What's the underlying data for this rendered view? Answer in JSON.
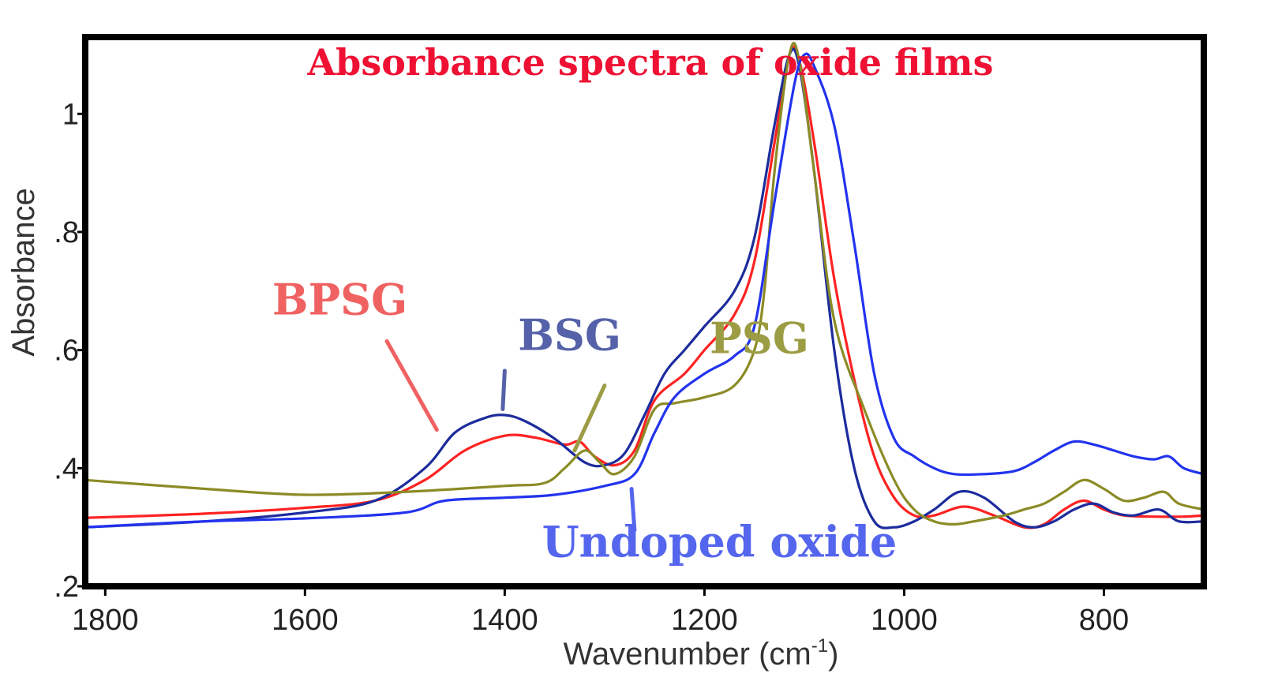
{
  "chart_data": {
    "type": "line",
    "title": "Absorbance spectra of oxide films",
    "xlabel_main": "Wavenumber (cm",
    "xlabel_sup": "-1",
    "xlabel_close": ")",
    "ylabel": "Absorbance",
    "xlim": [
      1820,
      700
    ],
    "ylim": [
      0.2,
      1.13
    ],
    "x_ticks": [
      1800,
      1600,
      1400,
      1200,
      1000,
      800
    ],
    "x_tick_labels": [
      "1800",
      "1600",
      "1400",
      "1200",
      "1000",
      "800"
    ],
    "y_ticks": [
      0.2,
      0.4,
      0.6,
      0.8,
      1.0
    ],
    "y_tick_labels": [
      ".2",
      ".4",
      ".6",
      ".8",
      "1"
    ],
    "title_color": "#ee1133",
    "grid": false,
    "series": [
      {
        "name": "BPSG",
        "color": "#ff2222",
        "label_color": "#f06262",
        "label_at": [
          1565,
          0.66
        ],
        "pointer": [
          [
            1518,
            0.615
          ],
          [
            1468,
            0.465
          ]
        ],
        "points": [
          [
            1820,
            0.316
          ],
          [
            1700,
            0.323
          ],
          [
            1600,
            0.333
          ],
          [
            1530,
            0.345
          ],
          [
            1480,
            0.38
          ],
          [
            1440,
            0.43
          ],
          [
            1400,
            0.455
          ],
          [
            1370,
            0.452
          ],
          [
            1340,
            0.44
          ],
          [
            1325,
            0.445
          ],
          [
            1310,
            0.42
          ],
          [
            1290,
            0.405
          ],
          [
            1270,
            0.43
          ],
          [
            1250,
            0.515
          ],
          [
            1220,
            0.56
          ],
          [
            1200,
            0.6
          ],
          [
            1170,
            0.66
          ],
          [
            1150,
            0.75
          ],
          [
            1130,
            0.95
          ],
          [
            1115,
            1.1
          ],
          [
            1105,
            1.09
          ],
          [
            1090,
            0.95
          ],
          [
            1070,
            0.72
          ],
          [
            1050,
            0.55
          ],
          [
            1030,
            0.42
          ],
          [
            1010,
            0.35
          ],
          [
            990,
            0.32
          ],
          [
            970,
            0.32
          ],
          [
            940,
            0.335
          ],
          [
            910,
            0.32
          ],
          [
            880,
            0.3
          ],
          [
            860,
            0.305
          ],
          [
            840,
            0.33
          ],
          [
            820,
            0.345
          ],
          [
            800,
            0.33
          ],
          [
            780,
            0.32
          ],
          [
            750,
            0.318
          ],
          [
            720,
            0.318
          ],
          [
            700,
            0.32
          ]
        ]
      },
      {
        "name": "BSG",
        "color": "#1c2c9c",
        "label_color": "#5561a8",
        "label_at": [
          1335,
          0.6
        ],
        "pointer": [
          [
            1400,
            0.565
          ],
          [
            1402,
            0.5
          ]
        ],
        "points": [
          [
            1820,
            0.3
          ],
          [
            1700,
            0.31
          ],
          [
            1600,
            0.325
          ],
          [
            1530,
            0.345
          ],
          [
            1480,
            0.4
          ],
          [
            1450,
            0.46
          ],
          [
            1420,
            0.485
          ],
          [
            1400,
            0.49
          ],
          [
            1380,
            0.48
          ],
          [
            1350,
            0.45
          ],
          [
            1320,
            0.41
          ],
          [
            1300,
            0.405
          ],
          [
            1280,
            0.425
          ],
          [
            1260,
            0.49
          ],
          [
            1240,
            0.56
          ],
          [
            1220,
            0.6
          ],
          [
            1200,
            0.64
          ],
          [
            1170,
            0.7
          ],
          [
            1150,
            0.79
          ],
          [
            1130,
            0.98
          ],
          [
            1115,
            1.1
          ],
          [
            1105,
            1.08
          ],
          [
            1090,
            0.9
          ],
          [
            1070,
            0.6
          ],
          [
            1050,
            0.4
          ],
          [
            1030,
            0.31
          ],
          [
            1010,
            0.3
          ],
          [
            990,
            0.31
          ],
          [
            970,
            0.33
          ],
          [
            945,
            0.36
          ],
          [
            920,
            0.35
          ],
          [
            890,
            0.31
          ],
          [
            870,
            0.3
          ],
          [
            850,
            0.31
          ],
          [
            830,
            0.33
          ],
          [
            810,
            0.34
          ],
          [
            790,
            0.325
          ],
          [
            770,
            0.32
          ],
          [
            745,
            0.33
          ],
          [
            725,
            0.31
          ],
          [
            700,
            0.31
          ]
        ]
      },
      {
        "name": "PSG",
        "color": "#8b8b26",
        "label_color": "#9c9c44",
        "label_at": [
          1145,
          0.595
        ],
        "pointer": [
          [
            1300,
            0.54
          ],
          [
            1330,
            0.43
          ]
        ],
        "points": [
          [
            1820,
            0.38
          ],
          [
            1700,
            0.365
          ],
          [
            1600,
            0.355
          ],
          [
            1500,
            0.36
          ],
          [
            1400,
            0.37
          ],
          [
            1360,
            0.375
          ],
          [
            1340,
            0.4
          ],
          [
            1320,
            0.43
          ],
          [
            1305,
            0.41
          ],
          [
            1290,
            0.39
          ],
          [
            1270,
            0.42
          ],
          [
            1250,
            0.5
          ],
          [
            1230,
            0.51
          ],
          [
            1200,
            0.52
          ],
          [
            1170,
            0.54
          ],
          [
            1150,
            0.6
          ],
          [
            1140,
            0.7
          ],
          [
            1130,
            0.9
          ],
          [
            1115,
            1.1
          ],
          [
            1105,
            1.09
          ],
          [
            1090,
            0.9
          ],
          [
            1070,
            0.65
          ],
          [
            1040,
            0.5
          ],
          [
            1010,
            0.38
          ],
          [
            990,
            0.33
          ],
          [
            970,
            0.31
          ],
          [
            950,
            0.305
          ],
          [
            930,
            0.31
          ],
          [
            900,
            0.32
          ],
          [
            880,
            0.33
          ],
          [
            860,
            0.34
          ],
          [
            840,
            0.36
          ],
          [
            820,
            0.38
          ],
          [
            800,
            0.365
          ],
          [
            780,
            0.345
          ],
          [
            760,
            0.35
          ],
          [
            740,
            0.36
          ],
          [
            725,
            0.34
          ],
          [
            700,
            0.33
          ]
        ]
      },
      {
        "name": "Undoped oxide",
        "color": "#2233ee",
        "label_color": "#5566ee",
        "label_at": [
          1185,
          0.25
        ],
        "pointer": [
          [
            1273,
            0.365
          ],
          [
            1270,
            0.295
          ]
        ],
        "points": [
          [
            1820,
            0.3
          ],
          [
            1700,
            0.31
          ],
          [
            1600,
            0.315
          ],
          [
            1500,
            0.325
          ],
          [
            1460,
            0.345
          ],
          [
            1400,
            0.35
          ],
          [
            1350,
            0.355
          ],
          [
            1300,
            0.37
          ],
          [
            1270,
            0.39
          ],
          [
            1250,
            0.46
          ],
          [
            1230,
            0.52
          ],
          [
            1200,
            0.56
          ],
          [
            1170,
            0.59
          ],
          [
            1150,
            0.64
          ],
          [
            1130,
            0.85
          ],
          [
            1110,
            1.05
          ],
          [
            1100,
            1.1
          ],
          [
            1090,
            1.08
          ],
          [
            1070,
            0.98
          ],
          [
            1050,
            0.78
          ],
          [
            1030,
            0.56
          ],
          [
            1010,
            0.45
          ],
          [
            990,
            0.42
          ],
          [
            970,
            0.4
          ],
          [
            950,
            0.39
          ],
          [
            920,
            0.39
          ],
          [
            890,
            0.395
          ],
          [
            870,
            0.41
          ],
          [
            850,
            0.43
          ],
          [
            830,
            0.445
          ],
          [
            810,
            0.44
          ],
          [
            790,
            0.43
          ],
          [
            770,
            0.42
          ],
          [
            750,
            0.415
          ],
          [
            735,
            0.42
          ],
          [
            720,
            0.4
          ],
          [
            700,
            0.39
          ]
        ]
      }
    ]
  }
}
